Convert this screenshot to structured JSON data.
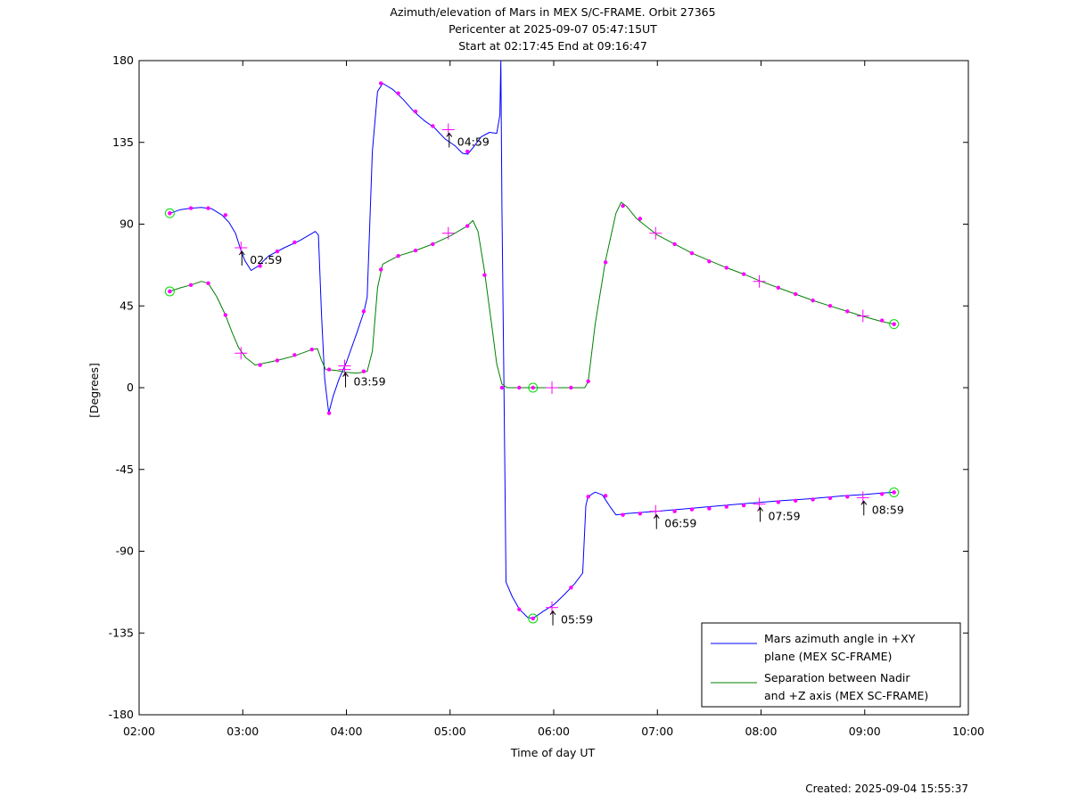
{
  "chart_data": {
    "type": "line",
    "title": [
      "Azimuth/elevation of Mars in MEX S/C-FRAME.  Orbit 27365",
      "Pericenter at 2025-09-07 05:47:15UT",
      "Start at 02:17:45 End at 09:16:47"
    ],
    "xlabel": "Time of day UT",
    "ylabel": "[Degrees]",
    "xlim": [
      2.0,
      10.0
    ],
    "ylim": [
      -180,
      180
    ],
    "x_ticks": [
      {
        "v": 2,
        "label": "02:00"
      },
      {
        "v": 3,
        "label": "03:00"
      },
      {
        "v": 4,
        "label": "04:00"
      },
      {
        "v": 5,
        "label": "05:00"
      },
      {
        "v": 6,
        "label": "06:00"
      },
      {
        "v": 7,
        "label": "07:00"
      },
      {
        "v": 8,
        "label": "08:00"
      },
      {
        "v": 9,
        "label": "09:00"
      },
      {
        "v": 10,
        "label": "10:00"
      }
    ],
    "y_ticks": [
      {
        "v": 180,
        "label": "180"
      },
      {
        "v": 135,
        "label": "135"
      },
      {
        "v": 90,
        "label": "90"
      },
      {
        "v": 45,
        "label": "45"
      },
      {
        "v": 0,
        "label": "0"
      },
      {
        "v": -45,
        "label": "-45"
      },
      {
        "v": -90,
        "label": "-90"
      },
      {
        "v": -135,
        "label": "-135"
      },
      {
        "v": -180,
        "label": "-180"
      }
    ],
    "grid": false,
    "legend_position": "bottom-right",
    "series": [
      {
        "name": "Mars azimuth angle in +XY plane (MEX SC-FRAME)",
        "legend_lines": [
          "Mars azimuth angle in +XY",
          "plane (MEX SC-FRAME)"
        ],
        "color": "#0000ff",
        "points": [
          [
            2.296,
            96
          ],
          [
            2.4,
            98
          ],
          [
            2.5,
            98.8
          ],
          [
            2.6,
            99.2
          ],
          [
            2.7,
            98.5
          ],
          [
            2.8,
            95
          ],
          [
            2.867,
            91
          ],
          [
            2.93,
            85
          ],
          [
            2.98,
            76
          ],
          [
            3.02,
            70
          ],
          [
            3.08,
            64.5
          ],
          [
            3.15,
            67
          ],
          [
            3.25,
            72.5
          ],
          [
            3.4,
            77
          ],
          [
            3.55,
            81
          ],
          [
            3.7,
            86
          ],
          [
            3.73,
            84
          ],
          [
            3.76,
            40
          ],
          [
            3.79,
            5
          ],
          [
            3.83,
            -14
          ],
          [
            3.87,
            -5
          ],
          [
            3.93,
            5
          ],
          [
            4.0,
            14
          ],
          [
            4.1,
            30
          ],
          [
            4.17,
            42
          ],
          [
            4.2,
            50
          ],
          [
            4.25,
            130
          ],
          [
            4.3,
            163
          ],
          [
            4.35,
            167.5
          ],
          [
            4.45,
            164
          ],
          [
            4.55,
            158.5
          ],
          [
            4.65,
            152
          ],
          [
            4.75,
            147
          ],
          [
            4.85,
            143
          ],
          [
            4.95,
            137
          ],
          [
            5.05,
            133
          ],
          [
            5.12,
            129
          ],
          [
            5.17,
            128.5
          ],
          [
            5.22,
            132
          ],
          [
            5.3,
            138
          ],
          [
            5.38,
            140.5
          ],
          [
            5.45,
            140
          ],
          [
            5.48,
            150
          ],
          [
            5.49,
            180
          ],
          [
            5.5,
            100
          ],
          [
            5.52,
            0
          ],
          [
            5.54,
            -107
          ],
          [
            5.6,
            -115
          ],
          [
            5.67,
            -122
          ],
          [
            5.75,
            -126.5
          ],
          [
            5.8,
            -127
          ],
          [
            5.9,
            -123
          ],
          [
            6.0,
            -119.5
          ],
          [
            6.1,
            -114
          ],
          [
            6.2,
            -108
          ],
          [
            6.28,
            -102
          ],
          [
            6.31,
            -65
          ],
          [
            6.33,
            -60
          ],
          [
            6.4,
            -57.5
          ],
          [
            6.47,
            -59
          ],
          [
            6.55,
            -66
          ],
          [
            6.6,
            -70
          ],
          [
            6.7,
            -69.3
          ],
          [
            7.0,
            -68
          ],
          [
            7.3,
            -66.5
          ],
          [
            7.6,
            -65
          ],
          [
            7.9,
            -63.5
          ],
          [
            8.2,
            -62.2
          ],
          [
            8.5,
            -61
          ],
          [
            8.8,
            -59.5
          ],
          [
            9.0,
            -58.8
          ],
          [
            9.16,
            -58
          ],
          [
            9.283,
            -57.6
          ]
        ],
        "markers": [
          [
            2.296,
            96
          ],
          [
            2.5,
            98.8
          ],
          [
            2.667,
            98.8
          ],
          [
            2.833,
            95
          ],
          [
            3.167,
            67
          ],
          [
            3.333,
            75
          ],
          [
            3.5,
            80
          ],
          [
            3.833,
            -14
          ],
          [
            4.167,
            42
          ],
          [
            4.333,
            167.5
          ],
          [
            4.5,
            162
          ],
          [
            4.667,
            152
          ],
          [
            4.833,
            144
          ],
          [
            5.167,
            130
          ],
          [
            5.667,
            -122
          ],
          [
            6.167,
            -110
          ],
          [
            6.333,
            -60
          ],
          [
            6.5,
            -59.5
          ],
          [
            6.667,
            -70
          ],
          [
            6.833,
            -69.3
          ],
          [
            7.167,
            -68
          ],
          [
            7.333,
            -67
          ],
          [
            7.5,
            -66.5
          ],
          [
            7.667,
            -65.5
          ],
          [
            7.833,
            -64.8
          ],
          [
            8.167,
            -63
          ],
          [
            8.333,
            -62.2
          ],
          [
            8.5,
            -61.5
          ],
          [
            8.667,
            -60.8
          ],
          [
            8.833,
            -60
          ],
          [
            9.167,
            -58.5
          ],
          [
            9.283,
            -57.6
          ]
        ]
      },
      {
        "name": "Separation between Nadir and +Z axis (MEX SC-FRAME)",
        "legend_lines": [
          "Separation between Nadir",
          "and +Z axis (MEX SC-FRAME)"
        ],
        "color": "#008000",
        "points": [
          [
            2.296,
            53
          ],
          [
            2.4,
            55
          ],
          [
            2.5,
            56.5
          ],
          [
            2.6,
            58.5
          ],
          [
            2.667,
            57.5
          ],
          [
            2.75,
            50
          ],
          [
            2.833,
            40
          ],
          [
            2.9,
            30
          ],
          [
            2.96,
            22
          ],
          [
            3.03,
            16.5
          ],
          [
            3.12,
            12.5
          ],
          [
            3.167,
            13
          ],
          [
            3.333,
            15
          ],
          [
            3.5,
            17.5
          ],
          [
            3.667,
            21
          ],
          [
            3.72,
            21.5
          ],
          [
            3.76,
            15
          ],
          [
            3.8,
            10
          ],
          [
            3.9,
            9.5
          ],
          [
            4.0,
            8.5
          ],
          [
            4.1,
            8
          ],
          [
            4.2,
            9
          ],
          [
            4.25,
            20
          ],
          [
            4.3,
            55
          ],
          [
            4.35,
            68
          ],
          [
            4.5,
            72.5
          ],
          [
            4.667,
            75.5
          ],
          [
            4.833,
            79
          ],
          [
            5.0,
            83.5
          ],
          [
            5.167,
            89
          ],
          [
            5.22,
            92
          ],
          [
            5.27,
            86
          ],
          [
            5.33,
            65
          ],
          [
            5.4,
            35
          ],
          [
            5.45,
            13
          ],
          [
            5.5,
            2
          ],
          [
            5.55,
            0
          ],
          [
            6.0,
            0
          ],
          [
            6.3,
            0
          ],
          [
            6.333,
            3.5
          ],
          [
            6.4,
            35
          ],
          [
            6.5,
            70
          ],
          [
            6.6,
            96
          ],
          [
            6.65,
            102
          ],
          [
            6.7,
            100
          ],
          [
            6.8,
            93
          ],
          [
            6.9,
            88.5
          ],
          [
            7.0,
            84
          ],
          [
            7.167,
            79
          ],
          [
            7.333,
            74
          ],
          [
            7.5,
            70
          ],
          [
            7.667,
            66
          ],
          [
            7.833,
            62.5
          ],
          [
            8.0,
            58.5
          ],
          [
            8.167,
            55
          ],
          [
            8.333,
            51.5
          ],
          [
            8.5,
            48
          ],
          [
            8.667,
            45
          ],
          [
            8.833,
            42
          ],
          [
            9.0,
            39
          ],
          [
            9.16,
            36.5
          ],
          [
            9.283,
            35
          ]
        ],
        "markers": [
          [
            2.296,
            53
          ],
          [
            2.5,
            56.5
          ],
          [
            2.667,
            57.5
          ],
          [
            2.833,
            40
          ],
          [
            3.167,
            12.5
          ],
          [
            3.333,
            15
          ],
          [
            3.5,
            18
          ],
          [
            3.667,
            21
          ],
          [
            3.833,
            10
          ],
          [
            4.167,
            9
          ],
          [
            4.333,
            65
          ],
          [
            4.5,
            72.5
          ],
          [
            4.667,
            75.5
          ],
          [
            4.833,
            79
          ],
          [
            5.167,
            89
          ],
          [
            5.333,
            62
          ],
          [
            5.5,
            0
          ],
          [
            5.667,
            0
          ],
          [
            6.167,
            0
          ],
          [
            6.333,
            3.5
          ],
          [
            6.5,
            69
          ],
          [
            6.667,
            100
          ],
          [
            6.833,
            93
          ],
          [
            7.167,
            79
          ],
          [
            7.333,
            74
          ],
          [
            7.5,
            69.5
          ],
          [
            7.667,
            66
          ],
          [
            7.833,
            62.5
          ],
          [
            8.167,
            55
          ],
          [
            8.333,
            51.5
          ],
          [
            8.5,
            48
          ],
          [
            8.667,
            45
          ],
          [
            8.833,
            42
          ],
          [
            9.167,
            37
          ],
          [
            9.283,
            35
          ]
        ]
      }
    ],
    "hour_marks": [
      {
        "x": 2.983,
        "y": 77,
        "label": "02:59"
      },
      {
        "x": 3.983,
        "y": 10,
        "label": "03:59"
      },
      {
        "x": 4.983,
        "y": 142,
        "label": "04:59"
      },
      {
        "x": 5.983,
        "y": -121,
        "label": "05:59"
      },
      {
        "x": 6.983,
        "y": -68,
        "label": "06:59"
      },
      {
        "x": 7.983,
        "y": -64,
        "label": "07:59"
      },
      {
        "x": 8.983,
        "y": -60.5,
        "label": "08:59"
      }
    ],
    "extra_crosses": [
      [
        2.983,
        19
      ],
      [
        3.983,
        12
      ],
      [
        4.983,
        85
      ],
      [
        5.983,
        0
      ],
      [
        6.983,
        85
      ],
      [
        7.983,
        58.5
      ],
      [
        8.983,
        39.5
      ]
    ],
    "circle_markers": [
      [
        2.296,
        96
      ],
      [
        2.296,
        53
      ],
      [
        5.8,
        0
      ],
      [
        5.8,
        -127
      ],
      [
        9.283,
        35
      ],
      [
        9.283,
        -57.6
      ]
    ],
    "marker_color": "#ff00ff",
    "circle_color": "#00dd00"
  },
  "footer": {
    "created": "Created: 2025-09-04 15:55:37"
  }
}
